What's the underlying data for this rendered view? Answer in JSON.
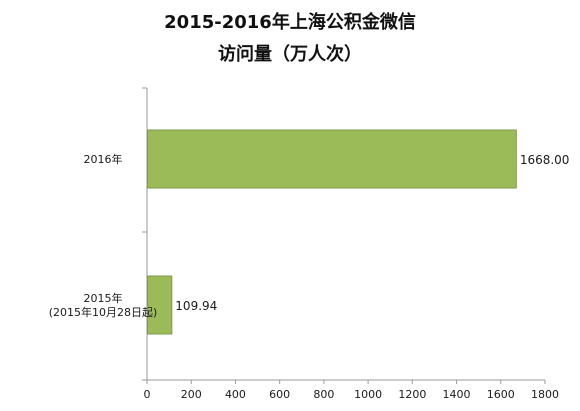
{
  "chart_data": {
    "type": "bar",
    "orientation": "horizontal",
    "title": "2015-2016年上海公积金微信",
    "subtitle": "访问量（万人次）",
    "categories": [
      {
        "lines": [
          "2016年"
        ]
      },
      {
        "lines": [
          "2015年",
          "(2015年10月28日起)"
        ]
      }
    ],
    "values": [
      1668.0,
      109.94
    ],
    "value_labels": [
      "1668.00",
      "109.94"
    ],
    "xlim": [
      0,
      1800
    ],
    "x_ticks": [
      0,
      200,
      400,
      600,
      800,
      1000,
      1200,
      1400,
      1600,
      1800
    ],
    "grid": false,
    "legend": "none",
    "colors": {
      "bar_fill": "#9BBB59",
      "bar_stroke": "#7F9B48",
      "axis": "#9A9A9A",
      "text": "#1a1a1a"
    }
  }
}
